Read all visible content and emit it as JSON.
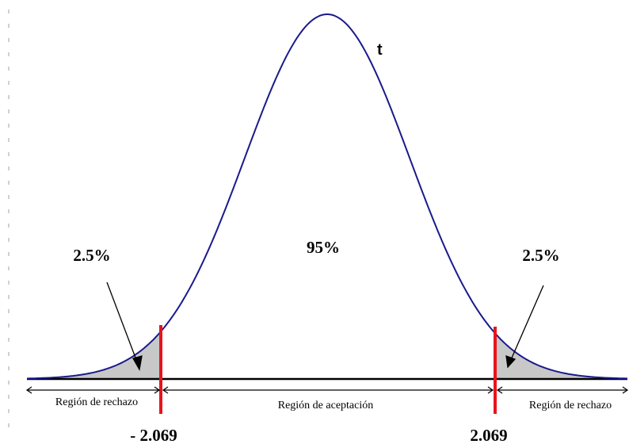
{
  "curve_label": "t",
  "center_percent": "95%",
  "left_tail_percent": "2.5%",
  "right_tail_percent": "2.5%",
  "left_critical": "- 2.069",
  "right_critical": "2.069",
  "left_region": "Región de rechazo",
  "center_region": "Región de aceptación",
  "right_region": "Región de rechazo",
  "colors": {
    "curve": "#1a1a8c",
    "critical_line": "#e8141b",
    "tail_fill": "#c8c8c8",
    "axis": "#000000"
  }
}
